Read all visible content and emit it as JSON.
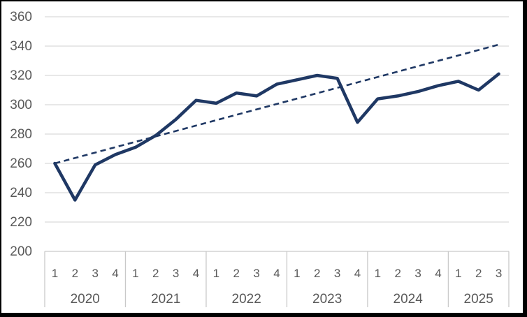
{
  "chart_data": {
    "type": "line",
    "title": "",
    "legend": "none",
    "grid": "horizontal",
    "y_axis": {
      "min": 200,
      "max": 360,
      "step": 20,
      "tick_labels": [
        "200",
        "220",
        "240",
        "260",
        "280",
        "300",
        "320",
        "340",
        "360"
      ]
    },
    "x_axis": {
      "level1_label": "quarter",
      "level2_label": "year",
      "years": [
        {
          "label": "2020",
          "quarters": [
            "1",
            "2",
            "3",
            "4"
          ]
        },
        {
          "label": "2021",
          "quarters": [
            "1",
            "2",
            "3",
            "4"
          ]
        },
        {
          "label": "2022",
          "quarters": [
            "1",
            "2",
            "3",
            "4"
          ]
        },
        {
          "label": "2023",
          "quarters": [
            "1",
            "2",
            "3",
            "4"
          ]
        },
        {
          "label": "2024",
          "quarters": [
            "1",
            "2",
            "3",
            "4"
          ]
        },
        {
          "label": "2025",
          "quarters": [
            "1",
            "2",
            "3"
          ]
        }
      ]
    },
    "series": [
      {
        "name": "quarterly-values",
        "style": "solid",
        "values": [
          260,
          235,
          259,
          266,
          271,
          279,
          290,
          303,
          301,
          308,
          306,
          314,
          317,
          320,
          318,
          288,
          304,
          306,
          309,
          313,
          316,
          310,
          321
        ]
      },
      {
        "name": "linear-trend",
        "style": "dashed",
        "trend_start": 260,
        "trend_end": 341
      }
    ],
    "colors": {
      "line": "#1f3864",
      "trend": "#1f3864",
      "gridline": "#d9d9d9",
      "table_border": "#c9c9c9",
      "axis_text": "#595959",
      "background": "#ffffff",
      "frame_border": "#000000"
    }
  }
}
